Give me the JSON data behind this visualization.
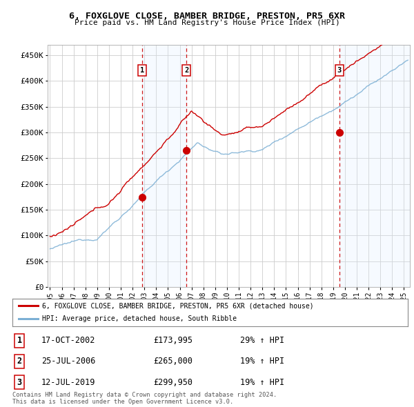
{
  "title": "6, FOXGLOVE CLOSE, BAMBER BRIDGE, PRESTON, PR5 6XR",
  "subtitle": "Price paid vs. HM Land Registry's House Price Index (HPI)",
  "ylim": [
    0,
    470000
  ],
  "yticks": [
    0,
    50000,
    100000,
    150000,
    200000,
    250000,
    300000,
    350000,
    400000,
    450000
  ],
  "ytick_labels": [
    "£0",
    "£50K",
    "£100K",
    "£150K",
    "£200K",
    "£250K",
    "£300K",
    "£350K",
    "£400K",
    "£450K"
  ],
  "xmin": 1994.8,
  "xmax": 2025.5,
  "legend_line1": "6, FOXGLOVE CLOSE, BAMBER BRIDGE, PRESTON, PR5 6XR (detached house)",
  "legend_line2": "HPI: Average price, detached house, South Ribble",
  "sale1_date": 2002.8,
  "sale1_price": 173995,
  "sale2_date": 2006.56,
  "sale2_price": 265000,
  "sale3_date": 2019.53,
  "sale3_price": 299950,
  "footer": "Contains HM Land Registry data © Crown copyright and database right 2024.\nThis data is licensed under the Open Government Licence v3.0.",
  "hpi_color": "#7bafd4",
  "price_color": "#cc0000",
  "shade_color": "#ddeeff",
  "sale_box_color": "#cc0000",
  "grid_color": "#cccccc",
  "bg_color": "#ffffff",
  "hatch_color": "#cccccc"
}
